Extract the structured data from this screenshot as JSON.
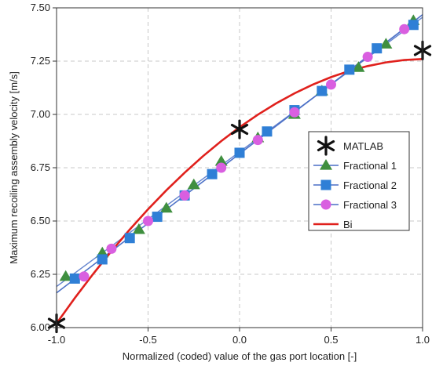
{
  "chart_data": {
    "type": "line",
    "title": "",
    "xlabel": "Normalized (coded) value of the gas port location [-]",
    "ylabel": "Maximum recoiling assembly velocity [m/s]",
    "xlim": [
      -1.0,
      1.0
    ],
    "ylim": [
      6.0,
      7.5
    ],
    "x_ticks": [
      -1.0,
      -0.5,
      0.0,
      0.5,
      1.0
    ],
    "x_tick_labels": [
      "-1.0",
      "-0.5",
      "0.0",
      "0.5",
      "1.0"
    ],
    "y_ticks": [
      6.0,
      6.25,
      6.5,
      6.75,
      7.0,
      7.25,
      7.5
    ],
    "y_tick_labels": [
      "6.00",
      "6.25",
      "6.50",
      "6.75",
      "7.00",
      "7.25",
      "7.50"
    ],
    "grid": true,
    "legend_position": "right",
    "series": [
      {
        "name": "MATLAB",
        "marker": "asterisk",
        "color": "#111111",
        "x": [
          -1.0,
          0.0,
          1.0
        ],
        "y": [
          6.02,
          6.93,
          7.3
        ]
      },
      {
        "name": "Fractional 1",
        "marker": "triangle",
        "color": "#3f8f3f",
        "line_color": "#4a6fc6",
        "x": [
          -0.95,
          -0.75,
          -0.55,
          -0.4,
          -0.25,
          -0.1,
          0.1,
          0.3,
          0.45,
          0.65,
          0.8,
          0.95
        ],
        "y": [
          6.24,
          6.35,
          6.46,
          6.56,
          6.67,
          6.78,
          6.89,
          7.0,
          7.11,
          7.22,
          7.33,
          7.44
        ]
      },
      {
        "name": "Fractional 2",
        "marker": "square",
        "color": "#2f7fd6",
        "line_color": "#4a6fc6",
        "x": [
          -0.9,
          -0.75,
          -0.6,
          -0.45,
          -0.3,
          -0.15,
          0.0,
          0.15,
          0.3,
          0.45,
          0.6,
          0.75,
          0.95
        ],
        "y": [
          6.23,
          6.32,
          6.42,
          6.52,
          6.62,
          6.72,
          6.82,
          6.92,
          7.02,
          7.11,
          7.21,
          7.31,
          7.42
        ]
      },
      {
        "name": "Fractional 3",
        "marker": "circle",
        "color": "#d95fe0",
        "line_color": "#4a6fc6",
        "x": [
          -0.85,
          -0.7,
          -0.5,
          -0.3,
          -0.1,
          0.1,
          0.3,
          0.5,
          0.7,
          0.9
        ],
        "y": [
          6.24,
          6.37,
          6.5,
          6.62,
          6.75,
          6.88,
          7.01,
          7.14,
          7.27,
          7.4
        ]
      },
      {
        "name": "Bi",
        "marker": "none",
        "color": "#e0201c",
        "x": [
          -1.0,
          -0.9,
          -0.8,
          -0.7,
          -0.6,
          -0.5,
          -0.4,
          -0.3,
          -0.2,
          -0.1,
          0.0,
          0.1,
          0.2,
          0.3,
          0.4,
          0.5,
          0.6,
          0.7,
          0.8,
          0.9,
          1.0
        ],
        "y": [
          6.02,
          6.139,
          6.252,
          6.359,
          6.46,
          6.555,
          6.644,
          6.727,
          6.804,
          6.875,
          6.94,
          6.999,
          7.052,
          7.099,
          7.14,
          7.175,
          7.204,
          7.227,
          7.244,
          7.255,
          7.26
        ]
      }
    ]
  }
}
